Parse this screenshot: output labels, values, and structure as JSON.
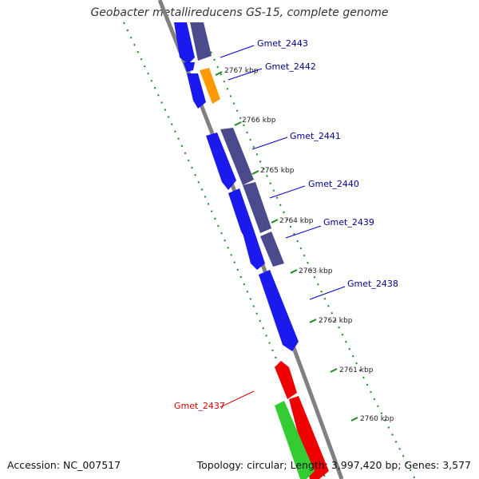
{
  "title": "Geobacter metallireducens GS-15, complete genome",
  "footer": {
    "accession": "Accession: NC_007517",
    "summary": "Topology: circular; Length: 3,997,420 bp; Genes: 3,577"
  },
  "kbp_labels": [
    "2767 kbp",
    "2766 kbp",
    "2765 kbp",
    "2764 kbp",
    "2763 kbp",
    "2762 kbp",
    "2761 kbp",
    "2760 kbp"
  ],
  "genes": [
    {
      "name": "Gmet_2443",
      "color": "#00008b"
    },
    {
      "name": "Gmet_2442",
      "color": "#00008b"
    },
    {
      "name": "Gmet_2441",
      "color": "#00008b"
    },
    {
      "name": "Gmet_2440",
      "color": "#00008b"
    },
    {
      "name": "Gmet_2439",
      "color": "#00008b"
    },
    {
      "name": "Gmet_2438",
      "color": "#00008b"
    },
    {
      "name": "Gmet_2437",
      "color": "#dd0000"
    }
  ],
  "colors": {
    "forward_gene": "#1a1aee",
    "dark_gene": "#4a4a8c",
    "orange_gene": "#ff9900",
    "red_gene": "#ee0000",
    "green_gene": "#33cc33",
    "backbone": "#808080",
    "tick": "#1a8a1a"
  }
}
